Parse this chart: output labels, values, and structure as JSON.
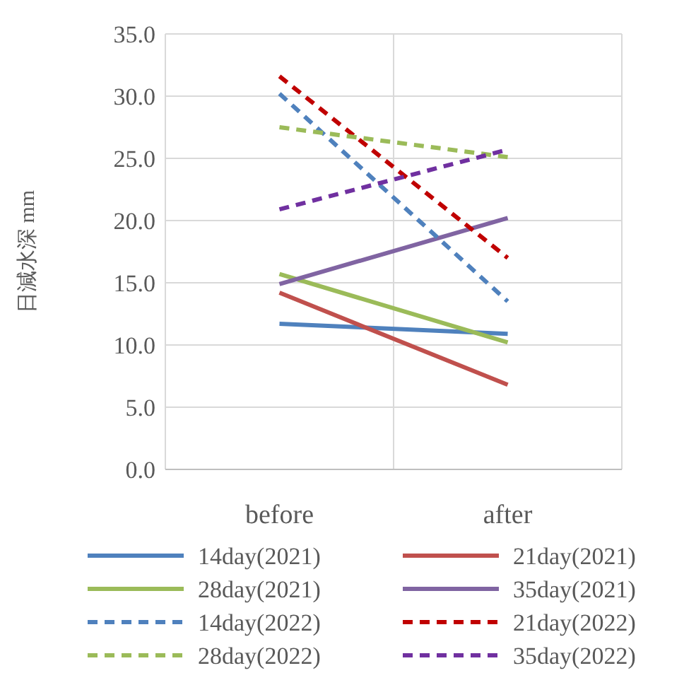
{
  "chart_data": {
    "type": "line",
    "ylabel": "日減水深 mm",
    "categories": [
      "before",
      "after"
    ],
    "ylim": [
      0,
      35
    ],
    "yticks": [
      {
        "value": 0,
        "label": "0.0"
      },
      {
        "value": 5,
        "label": "5.0"
      },
      {
        "value": 10,
        "label": "10.0"
      },
      {
        "value": 15,
        "label": "15.0"
      },
      {
        "value": 20,
        "label": "20.0"
      },
      {
        "value": 25,
        "label": "25.0"
      },
      {
        "value": 30,
        "label": "30.0"
      },
      {
        "value": 35,
        "label": "35.0"
      }
    ],
    "grid": true,
    "legend": "bottom",
    "marker": "none",
    "series": [
      {
        "name": "14day(2021)",
        "color": "#4f81bd",
        "line_style": "solid",
        "values": [
          11.7,
          10.9
        ]
      },
      {
        "name": "21day(2021)",
        "color": "#c0504d",
        "line_style": "solid",
        "values": [
          14.2,
          6.8
        ]
      },
      {
        "name": "28day(2021)",
        "color": "#9bbb59",
        "line_style": "solid",
        "values": [
          15.7,
          10.2
        ]
      },
      {
        "name": "35day(2021)",
        "color": "#8064a2",
        "line_style": "solid",
        "values": [
          14.9,
          20.2
        ]
      },
      {
        "name": "14day(2022)",
        "color": "#4f81bd",
        "line_style": "dashed",
        "values": [
          30.2,
          13.5
        ]
      },
      {
        "name": "21day(2022)",
        "color": "#c00000",
        "line_style": "dashed",
        "values": [
          31.6,
          17.0
        ]
      },
      {
        "name": "28day(2022)",
        "color": "#9bbb59",
        "line_style": "dashed",
        "values": [
          27.5,
          25.1
        ]
      },
      {
        "name": "35day(2022)",
        "color": "#7030a0",
        "line_style": "dashed",
        "values": [
          20.9,
          25.7
        ]
      }
    ]
  }
}
